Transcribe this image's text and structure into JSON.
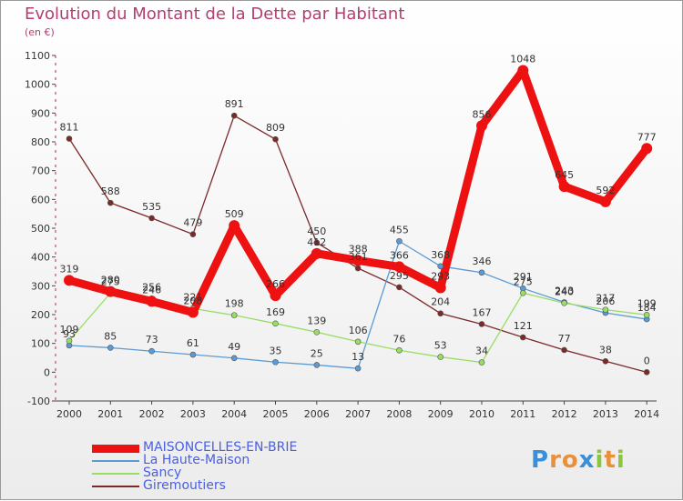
{
  "title": "Evolution du Montant de la Dette par Habitant",
  "unit_label": "(en €)",
  "logo_text": "Proxiti",
  "chart_data": {
    "type": "line",
    "x": [
      "2000",
      "2001",
      "2002",
      "2003",
      "2004",
      "2005",
      "2006",
      "2007",
      "2008",
      "2009",
      "2010",
      "2011",
      "2012",
      "2013",
      "2014"
    ],
    "ylim": [
      -100,
      1100
    ],
    "yticks": [
      -100,
      0,
      100,
      200,
      300,
      400,
      500,
      600,
      700,
      800,
      900,
      1000,
      1100
    ],
    "grid": false,
    "legend_position": "bottom-left",
    "series": [
      {
        "name": "MAISONCELLES-EN-BRIE",
        "color": "#ee1111",
        "values": [
          319,
          280,
          246,
          208,
          509,
          266,
          412,
          388,
          366,
          293,
          856,
          1048,
          645,
          592,
          777
        ],
        "labels": [
          "319",
          "280",
          "246",
          "208",
          "509",
          "266",
          "412",
          "388",
          "366",
          "293",
          "856",
          "1048",
          "645",
          "592",
          "777"
        ]
      },
      {
        "name": "La Haute-Maison",
        "color": "#5b9bd5",
        "values": [
          93,
          85,
          73,
          61,
          49,
          35,
          25,
          13,
          455,
          368,
          346,
          291,
          243,
          206,
          184
        ],
        "labels": [
          "93",
          "85",
          "73",
          "61",
          "49",
          "35",
          "25",
          "13",
          "455",
          "368",
          "346",
          "291",
          "243",
          "206",
          "184"
        ]
      },
      {
        "name": "Sancy",
        "color": "#99dd66",
        "values": [
          109,
          275,
          256,
          221,
          198,
          169,
          139,
          106,
          76,
          53,
          34,
          275,
          240,
          217,
          199
        ],
        "labels": [
          "109",
          "275",
          "256",
          "221",
          "198",
          "169",
          "139",
          "106",
          "76",
          "53",
          "34",
          "275",
          "240",
          "217",
          "199"
        ]
      },
      {
        "name": "Giremoutiers",
        "color": "#7b2a2a",
        "values": [
          811,
          588,
          535,
          479,
          891,
          809,
          450,
          361,
          295,
          204,
          167,
          121,
          77,
          38,
          0
        ],
        "labels": [
          "811",
          "588",
          "535",
          "479",
          "891",
          "809",
          "450",
          "361",
          "295",
          "204",
          "167",
          "121",
          "77",
          "38",
          "0"
        ]
      }
    ]
  }
}
